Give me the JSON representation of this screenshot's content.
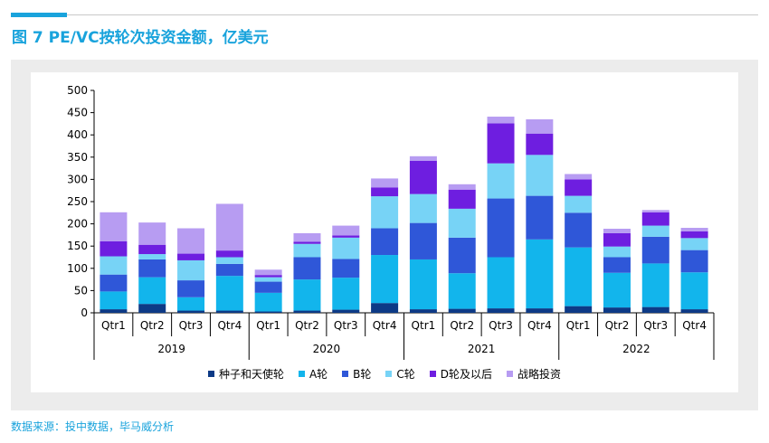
{
  "figure": {
    "title": "图 7  PE/VC按轮次投资金额，亿美元",
    "source": "数据来源：投中数据，毕马威分析"
  },
  "colors": {
    "accent": "#19a3dc",
    "series": [
      "#0d3a86",
      "#12b5ec",
      "#2f57d8",
      "#77d3f6",
      "#6e1ee0",
      "#b79cf2"
    ]
  },
  "chart_data": {
    "type": "bar",
    "stacked": true,
    "categories": [
      "Qtr1",
      "Qtr2",
      "Qtr3",
      "Qtr4",
      "Qtr1",
      "Qtr2",
      "Qtr3",
      "Qtr4",
      "Qtr1",
      "Qtr2",
      "Qtr3",
      "Qtr4",
      "Qtr1",
      "Qtr2",
      "Qtr3",
      "Qtr4"
    ],
    "groups": [
      {
        "label": "2019",
        "count": 4
      },
      {
        "label": "2020",
        "count": 4
      },
      {
        "label": "2021",
        "count": 4
      },
      {
        "label": "2022",
        "count": 4
      }
    ],
    "ylim": [
      0,
      500
    ],
    "yticks": [
      "0",
      "50",
      "100",
      "150",
      "200",
      "250",
      "300",
      "350",
      "400",
      "450",
      "500"
    ],
    "legend_position": "bottom",
    "series": [
      {
        "name": "种子和天使轮",
        "values": [
          8,
          20,
          5,
          5,
          3,
          5,
          7,
          22,
          8,
          9,
          10,
          10,
          15,
          12,
          13,
          8
        ]
      },
      {
        "name": "A轮",
        "values": [
          40,
          60,
          30,
          78,
          42,
          70,
          72,
          108,
          112,
          80,
          115,
          155,
          132,
          78,
          98,
          83
        ]
      },
      {
        "name": "B轮",
        "values": [
          38,
          40,
          38,
          27,
          25,
          50,
          42,
          60,
          82,
          80,
          132,
          98,
          78,
          35,
          60,
          50
        ]
      },
      {
        "name": "C轮",
        "values": [
          41,
          12,
          45,
          15,
          10,
          30,
          48,
          72,
          65,
          65,
          79,
          92,
          38,
          24,
          25,
          27
        ]
      },
      {
        "name": "D轮及以后",
        "values": [
          34,
          21,
          15,
          15,
          5,
          5,
          5,
          20,
          75,
          43,
          90,
          48,
          37,
          30,
          30,
          15
        ]
      },
      {
        "name": "战略投资",
        "values": [
          65,
          50,
          57,
          105,
          12,
          19,
          22,
          20,
          10,
          12,
          15,
          32,
          12,
          10,
          5,
          8
        ]
      }
    ]
  }
}
